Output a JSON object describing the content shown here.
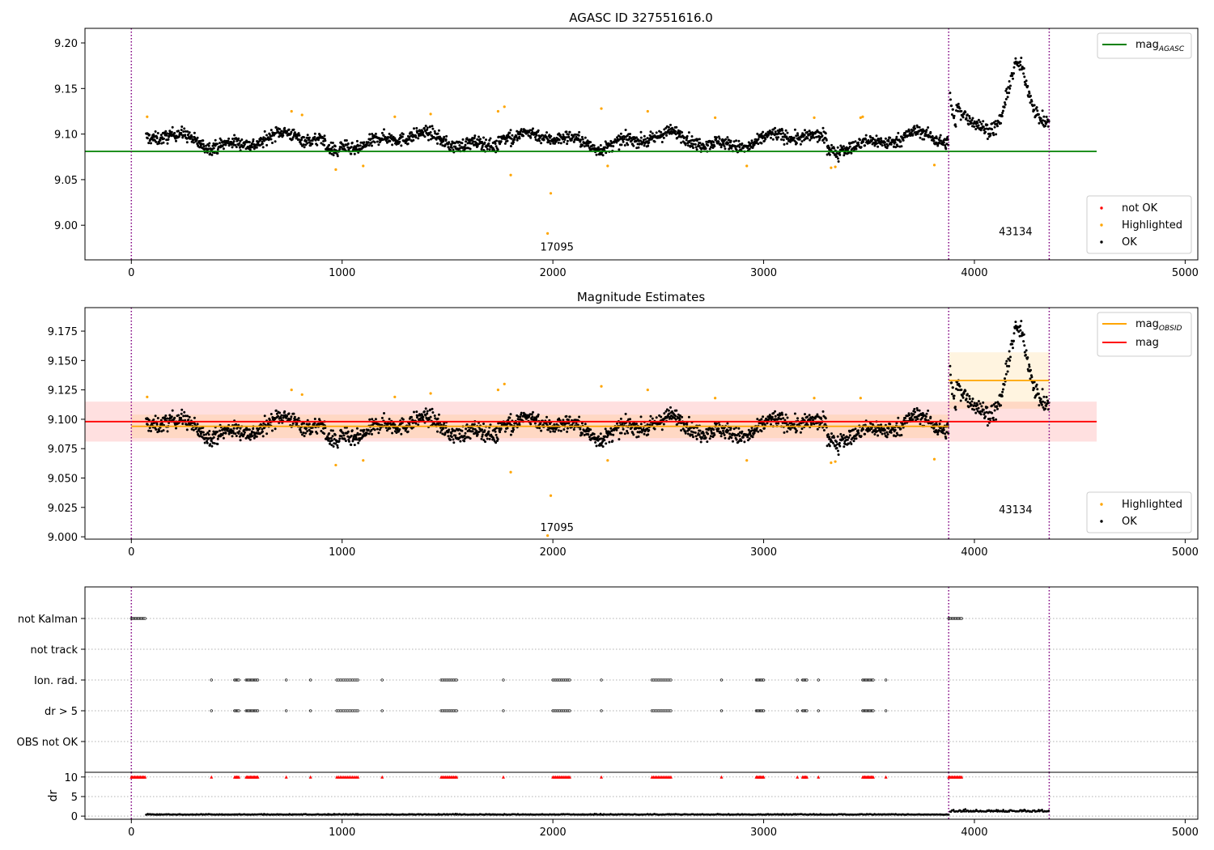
{
  "chart_data": [
    {
      "type": "scatter",
      "title": "AGASC ID 327551616.0",
      "xlim": [
        -220,
        5060
      ],
      "ylim": [
        8.962,
        9.216
      ],
      "xticks": [
        0,
        1000,
        2000,
        3000,
        4000,
        5000
      ],
      "yticks": [
        9.0,
        9.05,
        9.1,
        9.15,
        9.2
      ],
      "ytick_labels": [
        "9.00",
        "9.05",
        "9.10",
        "9.15",
        "9.20"
      ],
      "vlines": [
        0,
        3878,
        4355
      ],
      "obs_labels": [
        {
          "text": "17095",
          "x": 1940,
          "y": 8.972
        },
        {
          "text": "43134",
          "x": 4116,
          "y": 8.989
        }
      ],
      "hlines": [
        {
          "name": "mag",
          "sub": "AGASC",
          "y": 9.081,
          "x": [
            -220,
            4580
          ],
          "color": "#008000"
        }
      ],
      "segments": [
        {
          "x": [
            70,
            3878
          ],
          "mean": 9.093,
          "noise": 0.009
        },
        {
          "x": [
            3885,
            4355
          ],
          "mean": 9.133,
          "noise": 0.01,
          "bump": true
        }
      ],
      "outliers": [
        {
          "x": 1990,
          "y": 9.035
        },
        {
          "x": 1975,
          "y": 8.991
        },
        {
          "x": 1800,
          "y": 9.055
        },
        {
          "x": 970,
          "y": 9.061
        },
        {
          "x": 1100,
          "y": 9.065
        },
        {
          "x": 2260,
          "y": 9.065
        },
        {
          "x": 2920,
          "y": 9.065
        },
        {
          "x": 3320,
          "y": 9.063
        },
        {
          "x": 3340,
          "y": 9.064
        },
        {
          "x": 3810,
          "y": 9.066
        },
        {
          "x": 1740,
          "y": 9.125
        },
        {
          "x": 1770,
          "y": 9.13
        },
        {
          "x": 2230,
          "y": 9.128
        },
        {
          "x": 2450,
          "y": 9.125
        },
        {
          "x": 760,
          "y": 9.125
        },
        {
          "x": 75,
          "y": 9.119
        },
        {
          "x": 1250,
          "y": 9.119
        },
        {
          "x": 1420,
          "y": 9.122
        },
        {
          "x": 810,
          "y": 9.121
        },
        {
          "x": 3460,
          "y": 9.118
        },
        {
          "x": 2770,
          "y": 9.118
        },
        {
          "x": 3240,
          "y": 9.118
        },
        {
          "x": 3470,
          "y": 9.119
        }
      ],
      "legend_lines": [
        {
          "label": "mag",
          "sub": "AGASC",
          "color": "#008000"
        }
      ],
      "legend_points": [
        {
          "label": "not OK",
          "color": "#ff0000"
        },
        {
          "label": "Highlighted",
          "color": "#ffa500"
        },
        {
          "label": "OK",
          "color": "#000000"
        }
      ]
    },
    {
      "type": "scatter",
      "title": "Magnitude Estimates",
      "xlim": [
        -220,
        5060
      ],
      "ylim": [
        8.998,
        9.195
      ],
      "xticks": [
        0,
        1000,
        2000,
        3000,
        4000,
        5000
      ],
      "yticks": [
        9.0,
        9.025,
        9.05,
        9.075,
        9.1,
        9.125,
        9.15,
        9.175
      ],
      "ytick_labels": [
        "9.000",
        "9.025",
        "9.050",
        "9.075",
        "9.100",
        "9.125",
        "9.150",
        "9.175"
      ],
      "vlines": [
        0,
        3878,
        4355
      ],
      "obs_labels": [
        {
          "text": "17095",
          "x": 1940,
          "y": 9.005
        },
        {
          "text": "43134",
          "x": 4116,
          "y": 9.02
        }
      ],
      "hlines": [
        {
          "name": "mag",
          "sub": "",
          "y": 9.098,
          "x": [
            -220,
            4580
          ],
          "color": "#ff0000",
          "band": [
            9.081,
            9.115
          ]
        },
        {
          "name": "mag",
          "sub": "OBSID",
          "y": 9.094,
          "x": [
            0,
            3878
          ],
          "color": "#ffa500",
          "band": [
            9.084,
            9.104
          ]
        },
        {
          "name": "mag",
          "sub": "OBSID",
          "y": 9.133,
          "x": [
            3878,
            4355
          ],
          "color": "#ffa500",
          "band": [
            9.109,
            9.157
          ]
        }
      ],
      "segments": [
        {
          "x": [
            70,
            3878
          ],
          "mean": 9.093,
          "noise": 0.009
        },
        {
          "x": [
            3885,
            4355
          ],
          "mean": 9.133,
          "noise": 0.01,
          "bump": true
        }
      ],
      "outliers": [
        {
          "x": 1990,
          "y": 9.035
        },
        {
          "x": 1975,
          "y": 9.001
        },
        {
          "x": 1800,
          "y": 9.055
        },
        {
          "x": 970,
          "y": 9.061
        },
        {
          "x": 1100,
          "y": 9.065
        },
        {
          "x": 2260,
          "y": 9.065
        },
        {
          "x": 2920,
          "y": 9.065
        },
        {
          "x": 3320,
          "y": 9.063
        },
        {
          "x": 3340,
          "y": 9.064
        },
        {
          "x": 3810,
          "y": 9.066
        },
        {
          "x": 1740,
          "y": 9.125
        },
        {
          "x": 1770,
          "y": 9.13
        },
        {
          "x": 2230,
          "y": 9.128
        },
        {
          "x": 2450,
          "y": 9.125
        },
        {
          "x": 760,
          "y": 9.125
        },
        {
          "x": 75,
          "y": 9.119
        },
        {
          "x": 1250,
          "y": 9.119
        },
        {
          "x": 1420,
          "y": 9.122
        },
        {
          "x": 810,
          "y": 9.121
        },
        {
          "x": 3460,
          "y": 9.118
        },
        {
          "x": 2770,
          "y": 9.118
        },
        {
          "x": 3240,
          "y": 9.118
        }
      ],
      "legend_lines": [
        {
          "label": "mag",
          "sub": "OBSID",
          "color": "#ffa500"
        },
        {
          "label": "mag",
          "sub": "",
          "color": "#ff0000"
        }
      ],
      "legend_points": [
        {
          "label": "Highlighted",
          "color": "#ffa500"
        },
        {
          "label": "OK",
          "color": "#000000"
        }
      ]
    },
    {
      "type": "scatter",
      "title": "",
      "xlim": [
        -220,
        5060
      ],
      "categories": [
        "not Kalman",
        "not track",
        "Ion. rad.",
        "dr > 5",
        "OBS not OK"
      ],
      "vlines": [
        0,
        3878,
        4355
      ],
      "flags": {
        "not Kalman": [
          [
            0,
            65
          ],
          [
            3878,
            3945
          ]
        ],
        "not track": [],
        "Ion. rad.": [
          380,
          [
            490,
            510
          ],
          [
            545,
            600
          ],
          735,
          850,
          [
            975,
            1075
          ],
          1190,
          [
            1470,
            1550
          ],
          1765,
          [
            2000,
            2080
          ],
          2230,
          [
            2470,
            2560
          ],
          2800,
          [
            2965,
            3000
          ],
          3160,
          [
            3185,
            3205
          ],
          3260,
          [
            3470,
            3520
          ],
          3580
        ],
        "dr > 5": [
          380,
          [
            490,
            510
          ],
          [
            545,
            600
          ],
          735,
          850,
          [
            975,
            1075
          ],
          1190,
          [
            1470,
            1550
          ],
          1765,
          [
            2000,
            2080
          ],
          2230,
          [
            2470,
            2560
          ],
          2800,
          [
            2965,
            3000
          ],
          3160,
          [
            3185,
            3205
          ],
          3260,
          [
            3470,
            3520
          ],
          3580
        ],
        "OBS not OK": []
      }
    },
    {
      "type": "scatter",
      "title": "",
      "ylabel": "dr",
      "xlim": [
        -220,
        5060
      ],
      "ylim": [
        -0.8,
        11.2
      ],
      "yticks": [
        0,
        5,
        10
      ],
      "xticks": [
        0,
        1000,
        2000,
        3000,
        4000,
        5000
      ],
      "vlines": [
        0,
        3878,
        4355
      ],
      "dr_levels": [
        {
          "x": [
            70,
            3878
          ],
          "mean": 0.35
        },
        {
          "x": [
            3885,
            4355
          ],
          "mean": 1.1
        }
      ],
      "capped_value": 10
    }
  ]
}
